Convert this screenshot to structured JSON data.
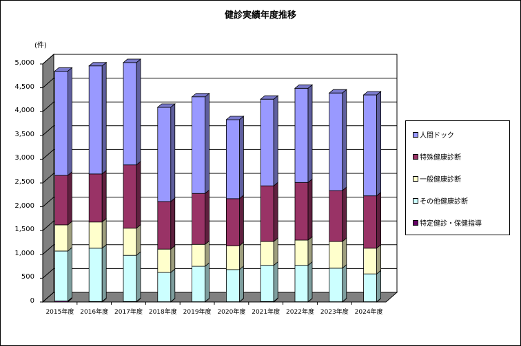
{
  "chart_data": {
    "type": "bar",
    "stacked": true,
    "style": "3d-stacked-column",
    "title": "健診実績年度推移",
    "xlabel": "",
    "ylabel": "(件)",
    "ylim": [
      0,
      5000
    ],
    "yticks": [
      "0",
      "500",
      "1,000",
      "1,500",
      "2,000",
      "2,500",
      "3,000",
      "3,500",
      "4,000",
      "4,500",
      "5,000"
    ],
    "grid": true,
    "legend_position": "right",
    "categories": [
      "2015年度",
      "2016年度",
      "2017年度",
      "2018年度",
      "2019年度",
      "2020年度",
      "2021年度",
      "2022年度",
      "2023年度",
      "2024年度"
    ],
    "series": [
      {
        "name": "特定健診・保健指導",
        "color": "#660066",
        "values": [
          20,
          10,
          10,
          5,
          5,
          5,
          10,
          5,
          5,
          5
        ]
      },
      {
        "name": "その他健康診断",
        "color": "#CCFFFF",
        "values": [
          1050,
          1120,
          970,
          615,
          745,
          675,
          760,
          765,
          705,
          585
        ]
      },
      {
        "name": "一般健康診断",
        "color": "#FFFFCC",
        "values": [
          550,
          550,
          570,
          490,
          460,
          500,
          500,
          530,
          560,
          540
        ]
      },
      {
        "name": "特殊健康診断",
        "color": "#993366",
        "values": [
          1040,
          1010,
          1330,
          1000,
          1070,
          990,
          1170,
          1210,
          1070,
          1100
        ]
      },
      {
        "name": "人間ドック",
        "color": "#9999FF",
        "values": [
          2190,
          2270,
          2150,
          1980,
          2030,
          1660,
          1820,
          1980,
          2050,
          2120
        ]
      }
    ]
  },
  "legend": {
    "items": [
      {
        "label": "人間ドック",
        "color": "#9999FF"
      },
      {
        "label": "特殊健康診断",
        "color": "#993366"
      },
      {
        "label": "一般健康診断",
        "color": "#FFFFCC"
      },
      {
        "label": "その他健康診断",
        "color": "#CCFFFF"
      },
      {
        "label": "特定健診・保健指導",
        "color": "#660066"
      }
    ]
  }
}
